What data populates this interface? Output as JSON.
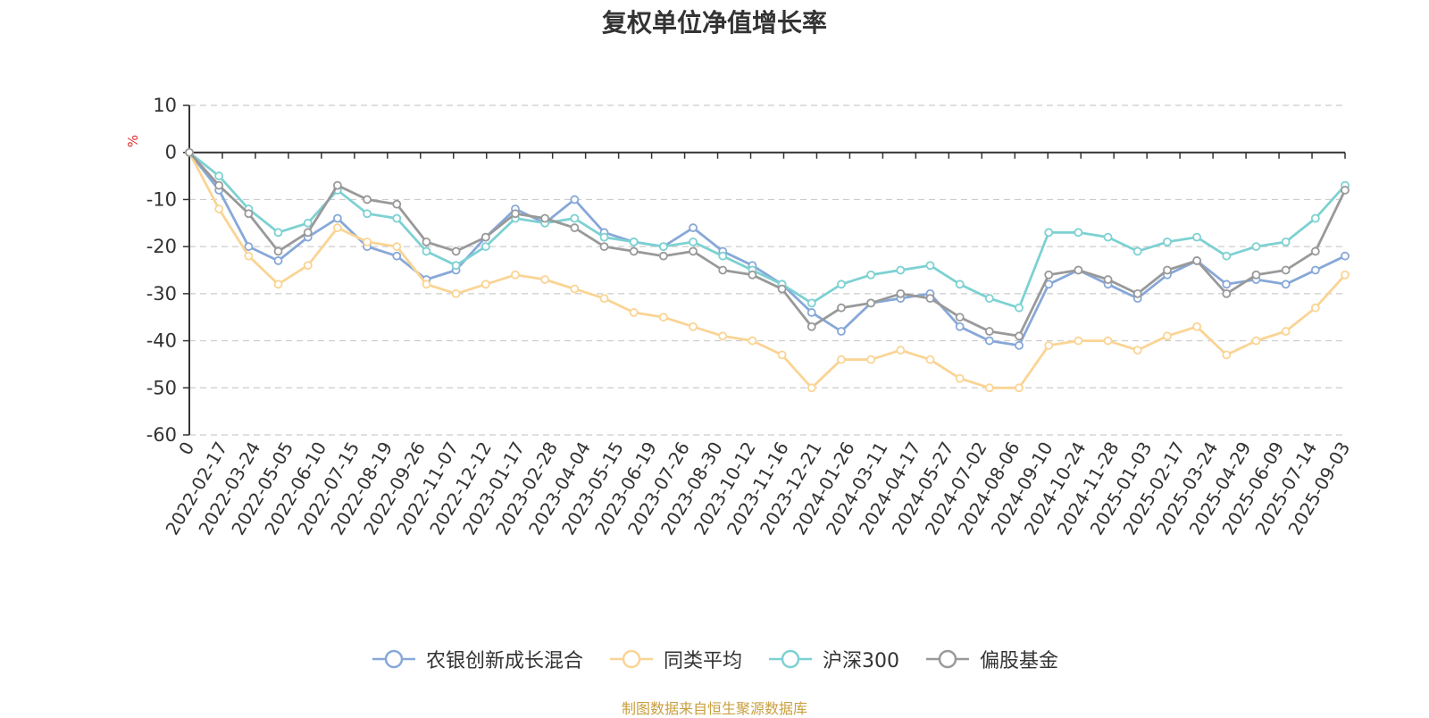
{
  "chart_data": {
    "type": "line",
    "title": "复权单位净值增长率",
    "ylabel": "%",
    "ylim": [
      -60,
      10
    ],
    "yticks": [
      10,
      0,
      -10,
      -20,
      -30,
      -40,
      -50,
      -60
    ],
    "grid": true,
    "legend_position": "bottom-center",
    "x_ticks": [
      "0",
      "2022-02-17",
      "2022-03-24",
      "2022-05-05",
      "2022-06-10",
      "2022-07-15",
      "2022-08-19",
      "2022-09-26",
      "2022-11-07",
      "2022-12-12",
      "2023-01-17",
      "2023-02-28",
      "2023-04-04",
      "2023-05-15",
      "2023-06-19",
      "2023-07-26",
      "2023-08-30",
      "2023-10-12",
      "2023-11-16",
      "2023-12-21",
      "2024-01-26",
      "2024-03-11",
      "2024-04-17",
      "2024-05-27",
      "2024-07-02",
      "2024-08-06",
      "2024-09-10",
      "2024-10-24",
      "2024-11-28",
      "2025-01-03",
      "2025-02-17",
      "2025-03-24",
      "2025-04-29",
      "2025-06-09",
      "2025-07-14",
      "2025-09-03"
    ],
    "series": [
      {
        "name": "农银创新成长混合",
        "color": "#87a8d8",
        "values": [
          0,
          -8,
          -20,
          -23,
          -18,
          -14,
          -20,
          -22,
          -27,
          -25,
          -18,
          -12,
          -15,
          -10,
          -17,
          -19,
          -20,
          -16,
          -21,
          -24,
          -28,
          -34,
          -38,
          -32,
          -31,
          -30,
          -37,
          -40,
          -41,
          -28,
          -25,
          -28,
          -31,
          -26,
          -23,
          -28,
          -27,
          -28,
          -25,
          -22
        ]
      },
      {
        "name": "同类平均",
        "color": "#fad494",
        "values": [
          0,
          -12,
          -22,
          -28,
          -24,
          -16,
          -19,
          -20,
          -28,
          -30,
          -28,
          -26,
          -27,
          -29,
          -31,
          -34,
          -35,
          -37,
          -39,
          -40,
          -43,
          -50,
          -44,
          -44,
          -42,
          -44,
          -48,
          -50,
          -50,
          -41,
          -40,
          -40,
          -42,
          -39,
          -37,
          -43,
          -40,
          -38,
          -33,
          -26
        ]
      },
      {
        "name": "沪深300",
        "color": "#7dd1d2",
        "values": [
          0,
          -5,
          -12,
          -17,
          -15,
          -8,
          -13,
          -14,
          -21,
          -24,
          -20,
          -14,
          -15,
          -14,
          -18,
          -19,
          -20,
          -19,
          -22,
          -25,
          -28,
          -32,
          -28,
          -26,
          -25,
          -24,
          -28,
          -31,
          -33,
          -17,
          -17,
          -18,
          -21,
          -19,
          -18,
          -22,
          -20,
          -19,
          -14,
          -7
        ]
      },
      {
        "name": "偏股基金",
        "color": "#999999",
        "values": [
          0,
          -7,
          -13,
          -21,
          -17,
          -7,
          -10,
          -11,
          -19,
          -21,
          -18,
          -13,
          -14,
          -16,
          -20,
          -21,
          -22,
          -21,
          -25,
          -26,
          -29,
          -37,
          -33,
          -32,
          -30,
          -31,
          -35,
          -38,
          -39,
          -26,
          -25,
          -27,
          -30,
          -25,
          -23,
          -30,
          -26,
          -25,
          -21,
          -8
        ]
      }
    ],
    "source_note": "制图数据来自恒生聚源数据库"
  }
}
